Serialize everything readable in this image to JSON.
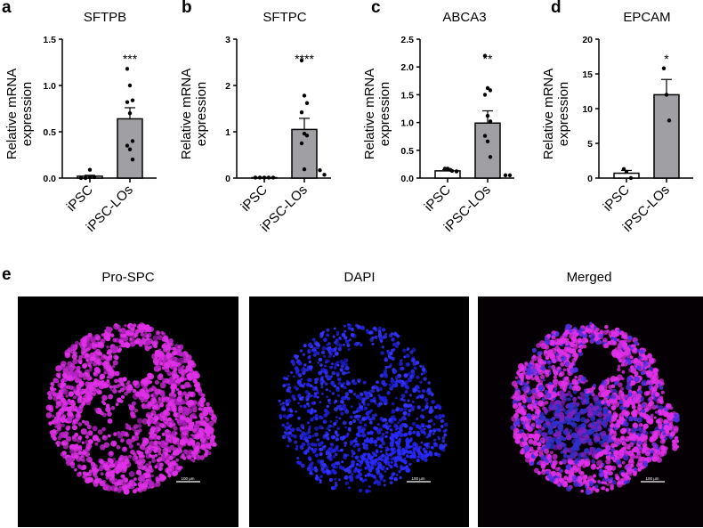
{
  "panels": {
    "a": {
      "letter": "a"
    },
    "b": {
      "letter": "b"
    },
    "c": {
      "letter": "c"
    },
    "d": {
      "letter": "d"
    },
    "e": {
      "letter": "e"
    }
  },
  "chart_data": [
    {
      "type": "bar",
      "panel": "a",
      "title": "SFTPB",
      "ylabel": "Relative mRNA expression",
      "categories": [
        "iPSC",
        "iPSC-LOs"
      ],
      "yticks": [
        "0.0",
        "0.5",
        "1.0",
        "1.5"
      ],
      "ylim": [
        0,
        1.5
      ],
      "values": [
        0.02,
        0.64
      ],
      "sem": [
        0.01,
        0.12
      ],
      "points": [
        [
          0.0,
          0.0,
          0.01,
          0.01,
          0.09
        ],
        [
          1.18,
          1.0,
          0.84,
          0.82,
          0.7,
          0.4,
          0.35,
          0.31,
          0.2
        ]
      ],
      "significance": "***",
      "bar_colors": [
        "#ffffff",
        "#a0a0a4"
      ]
    },
    {
      "type": "bar",
      "panel": "b",
      "title": "SFTPC",
      "ylabel": "Relative mRNA expression",
      "categories": [
        "iPSC",
        "iPSC-LOs"
      ],
      "yticks": [
        "0",
        "1",
        "2",
        "3"
      ],
      "ylim": [
        0,
        3
      ],
      "values": [
        0.01,
        1.05
      ],
      "sem": [
        0.005,
        0.24
      ],
      "points": [
        [
          0.01,
          0.01,
          0.01,
          0.01,
          0.01
        ],
        [
          2.54,
          1.78,
          1.62,
          1.42,
          0.96,
          0.92,
          0.75,
          0.19,
          0.17,
          0.07
        ]
      ],
      "significance": "****",
      "bar_colors": [
        "#ffffff",
        "#a0a0a4"
      ]
    },
    {
      "type": "bar",
      "panel": "c",
      "title": "ABCA3",
      "ylabel": "Relative mRNA expression",
      "categories": [
        "iPSC",
        "iPSC-LOs"
      ],
      "yticks": [
        "0.0",
        "0.5",
        "1.0",
        "1.5",
        "2.0",
        "2.5"
      ],
      "ylim": [
        0,
        2.5
      ],
      "values": [
        0.13,
        0.99
      ],
      "sem": [
        0.02,
        0.22
      ],
      "points": [
        [
          0.17,
          0.17,
          0.15,
          0.13,
          0.12
        ],
        [
          2.2,
          1.62,
          1.58,
          1.5,
          1.12,
          1.02,
          0.76,
          0.66,
          0.38,
          0.05,
          0.05
        ]
      ],
      "significance": "**",
      "bar_colors": [
        "#ffffff",
        "#a0a0a4"
      ]
    },
    {
      "type": "bar",
      "panel": "d",
      "title": "EPCAM",
      "ylabel": "Relative mRNA expression",
      "categories": [
        "iPSC",
        "iPSC-LOs"
      ],
      "yticks": [
        "0",
        "5",
        "10",
        "15",
        "20"
      ],
      "ylim": [
        0,
        20
      ],
      "values": [
        0.7,
        12.0
      ],
      "sem": [
        0.4,
        2.2
      ],
      "points": [
        [
          1.3,
          0.9,
          0.0
        ],
        [
          15.8,
          12.0,
          8.3
        ]
      ],
      "significance": "*",
      "bar_colors": [
        "#ffffff",
        "#a0a0a4"
      ]
    }
  ],
  "images": [
    {
      "title": "Pro-SPC",
      "scale_bar": "100 µm",
      "color": "#e030e8"
    },
    {
      "title": "DAPI",
      "scale_bar": "100 µm",
      "color": "#2020ff"
    },
    {
      "title": "Merged",
      "scale_bar": "100 µm",
      "color": "#d030e0"
    }
  ]
}
